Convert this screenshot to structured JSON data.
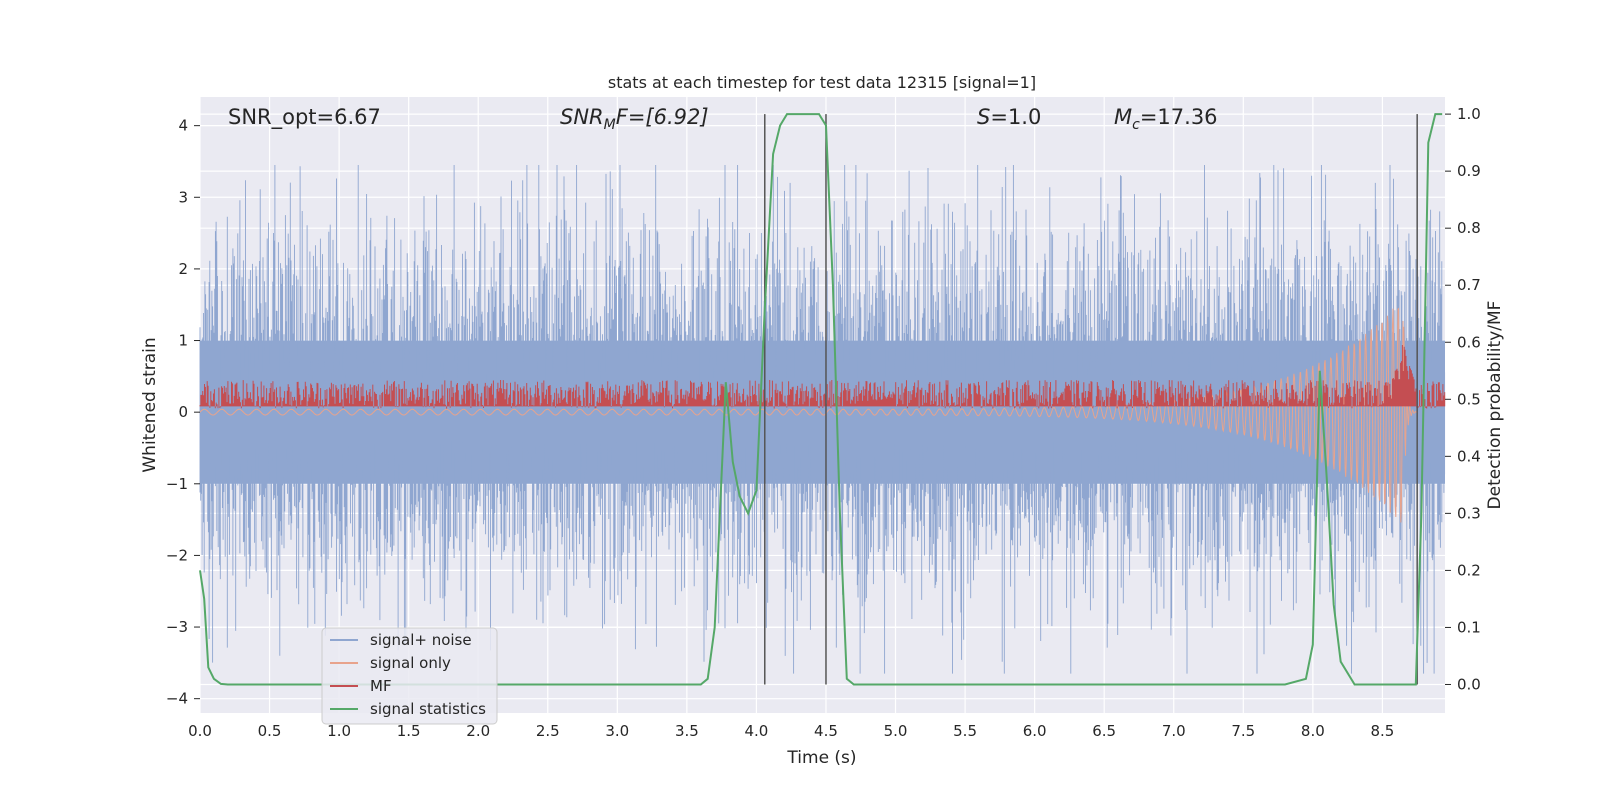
{
  "chart_data": {
    "type": "line",
    "title": "stats at each timestep for test data 12315 [signal=1]",
    "xlabel": "Time (s)",
    "ylabel_left": "Whitened strain",
    "ylabel_right": "Detection probability/MF",
    "xlim": [
      0.0,
      8.95
    ],
    "ylim_left": [
      -4.2,
      4.4
    ],
    "ylim_right": [
      -0.05,
      1.03
    ],
    "x_ticks": [
      0.0,
      0.5,
      1.0,
      1.5,
      2.0,
      2.5,
      3.0,
      3.5,
      4.0,
      4.5,
      5.0,
      5.5,
      6.0,
      6.5,
      7.0,
      7.5,
      8.0,
      8.5
    ],
    "x_tick_labels": [
      "0.0",
      "0.5",
      "1.0",
      "1.5",
      "2.0",
      "2.5",
      "3.0",
      "3.5",
      "4.0",
      "4.5",
      "5.0",
      "5.5",
      "6.0",
      "6.5",
      "7.0",
      "7.5",
      "8.0",
      "8.5"
    ],
    "y_left_ticks": [
      4,
      3,
      2,
      1,
      0,
      -1,
      -2,
      -3,
      -4
    ],
    "y_left_tick_labels": [
      "4",
      "3",
      "2",
      "1",
      "0",
      "−1",
      "−2",
      "−3",
      "−4"
    ],
    "y_right_ticks": [
      1.0,
      0.9,
      0.8,
      0.7,
      0.6,
      0.5,
      0.4,
      0.3,
      0.2,
      0.1,
      0.0
    ],
    "y_right_tick_labels": [
      "1.0",
      "0.9",
      "0.8",
      "0.7",
      "0.6",
      "0.5",
      "0.4",
      "0.3",
      "0.2",
      "0.1",
      "0.0"
    ],
    "grid": true,
    "legend_position": "bottom-left",
    "annotations": {
      "snr_opt": "SNR_opt=6.67",
      "snr_mf_base": "SNR",
      "snr_mf_sub": "M",
      "snr_mf_rest": "F=[6.92]",
      "s_label": "S",
      "s_value": "=1.0",
      "mc_base": "M",
      "mc_sub": "c",
      "mc_value": "=17.36"
    },
    "detection_markers_s": [
      4.06,
      4.5,
      8.75
    ],
    "series": [
      {
        "name": "signal+ noise",
        "color": "#8fa6d0",
        "axis": "left",
        "envelope": {
          "typical_abs_max": 2.2,
          "peak_max": 3.45,
          "peak_min": -3.65
        }
      },
      {
        "name": "signal only",
        "color": "#e8a38c",
        "axis": "left",
        "description_values": {
          "amplitude_start": 0.04,
          "amplitude_end": 1.6,
          "merger_time_s": 8.65
        }
      },
      {
        "name": "MF",
        "color": "#c44e52",
        "axis": "left",
        "range": [
          0.05,
          0.45
        ],
        "peak_value": 1.0,
        "peak_time_s": 8.65
      },
      {
        "name": "signal statistics",
        "color": "#55a868",
        "axis": "right",
        "x": [
          0.0,
          0.03,
          0.06,
          0.1,
          0.15,
          0.2,
          0.3,
          0.6,
          1.0,
          2.0,
          3.0,
          3.6,
          3.65,
          3.7,
          3.78,
          3.83,
          3.88,
          3.94,
          4.0,
          4.06,
          4.12,
          4.17,
          4.22,
          4.3,
          4.45,
          4.5,
          4.55,
          4.6,
          4.65,
          4.7,
          5.0,
          6.0,
          7.0,
          7.8,
          7.95,
          8.0,
          8.05,
          8.1,
          8.15,
          8.2,
          8.3,
          8.5,
          8.74,
          8.78,
          8.83,
          8.88,
          8.93
        ],
        "values": [
          0.2,
          0.15,
          0.03,
          0.01,
          0.001,
          0.0,
          0.0,
          0.0,
          0.0,
          0.0,
          0.0,
          0.0,
          0.01,
          0.1,
          0.53,
          0.39,
          0.33,
          0.3,
          0.34,
          0.66,
          0.93,
          0.98,
          1.0,
          1.0,
          1.0,
          0.98,
          0.7,
          0.3,
          0.01,
          0.0,
          0.0,
          0.0,
          0.0,
          0.0,
          0.01,
          0.07,
          0.55,
          0.36,
          0.14,
          0.04,
          0.0,
          0.0,
          0.0,
          0.3,
          0.95,
          1.0,
          1.0
        ]
      }
    ]
  }
}
